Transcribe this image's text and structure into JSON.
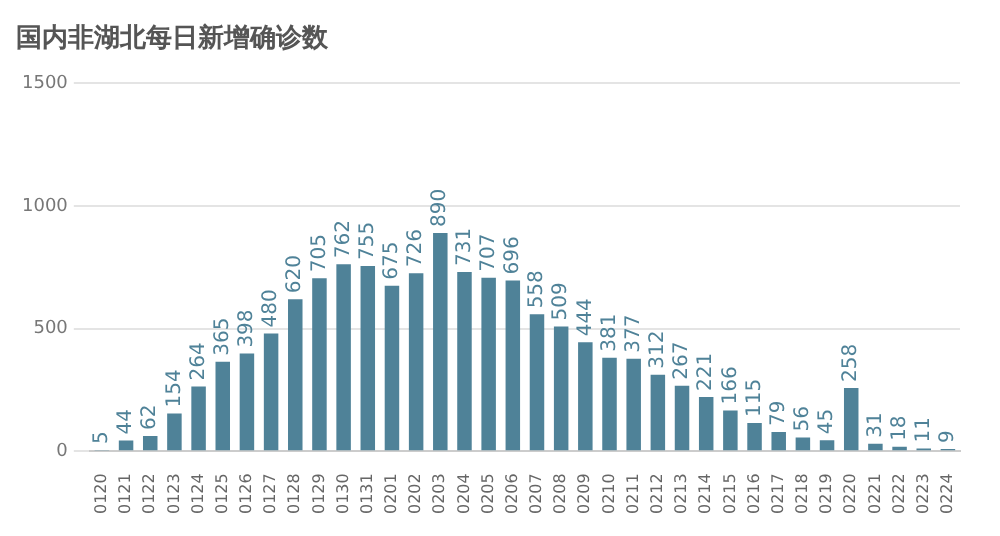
{
  "chart_data": {
    "type": "bar",
    "title": "国内非湖北每日新增确诊数",
    "categories": [
      "0120",
      "0121",
      "0122",
      "0123",
      "0124",
      "0125",
      "0126",
      "0127",
      "0128",
      "0129",
      "0130",
      "0131",
      "0201",
      "0202",
      "0203",
      "0204",
      "0205",
      "0206",
      "0207",
      "0208",
      "0209",
      "0210",
      "0211",
      "0212",
      "0213",
      "0214",
      "0215",
      "0216",
      "0217",
      "0218",
      "0219",
      "0220",
      "0221",
      "0222",
      "0223",
      "0224"
    ],
    "values": [
      5,
      44,
      62,
      154,
      264,
      365,
      398,
      480,
      620,
      705,
      762,
      755,
      675,
      726,
      890,
      731,
      707,
      696,
      558,
      509,
      444,
      381,
      377,
      312,
      267,
      221,
      166,
      115,
      79,
      56,
      45,
      258,
      31,
      18,
      11,
      9
    ],
    "color": "#4f8298",
    "ylim": [
      0,
      1500
    ],
    "yticks": [
      0,
      500,
      1000,
      1500
    ],
    "grid": "y",
    "data_labels": true
  }
}
